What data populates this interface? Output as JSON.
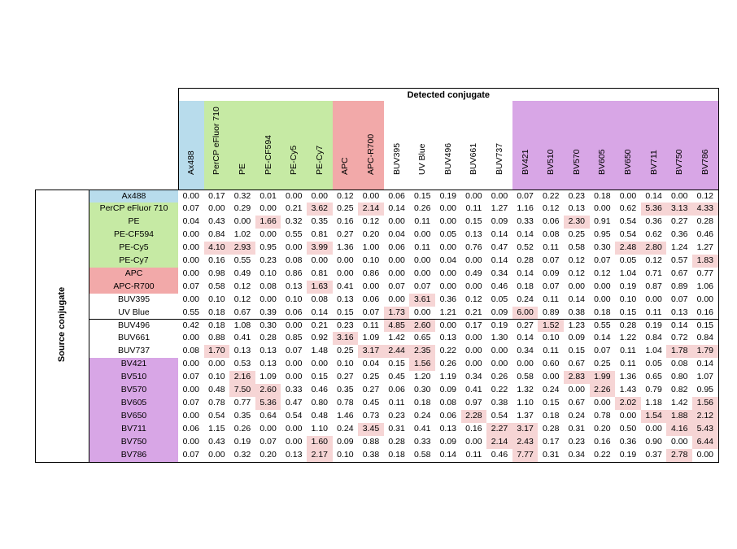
{
  "chart_data": {
    "type": "table",
    "column_header_title": "Detected conjugate",
    "row_header_title": "Source conjugate",
    "columns": [
      "Ax488",
      "PerCP eFluor 710",
      "PE",
      "PE-CF594",
      "PE-Cy5",
      "PE-Cy7",
      "APC",
      "APC-R700",
      "BUV395",
      "UV Blue",
      "BUV496",
      "BUV661",
      "BUV737",
      "BV421",
      "BV510",
      "BV570",
      "BV605",
      "BV650",
      "BV711",
      "BV750",
      "BV786"
    ],
    "rows": [
      "Ax488",
      "PerCP eFluor 710",
      "PE",
      "PE-CF594",
      "PE-Cy5",
      "PE-Cy7",
      "APC",
      "APC-R700",
      "BUV395",
      "UV Blue",
      "BUV496",
      "BUV661",
      "BUV737",
      "BV421",
      "BV510",
      "BV570",
      "BV605",
      "BV650",
      "BV711",
      "BV750",
      "BV786"
    ],
    "group_colors": {
      "blue": "#b8dcec",
      "green": "#c6eaa4",
      "red": "#f2a9a9",
      "white": "#ffffff",
      "purple": "#d8a6e6"
    },
    "column_groups": [
      "blue",
      "green",
      "green",
      "green",
      "green",
      "green",
      "red",
      "red",
      "white",
      "white",
      "white",
      "white",
      "white",
      "purple",
      "purple",
      "purple",
      "purple",
      "purple",
      "purple",
      "purple",
      "purple"
    ],
    "highlight_threshold": 1.5,
    "highlight_color": "#f6d5d5",
    "values": [
      [
        "0.00",
        "0.17",
        "0.32",
        "0.01",
        "0.00",
        "0.00",
        "0.12",
        "0.00",
        "0.06",
        "0.15",
        "0.19",
        "0.00",
        "0.00",
        "0.07",
        "0.22",
        "0.23",
        "0.18",
        "0.00",
        "0.14",
        "0.00",
        "0.12"
      ],
      [
        "0.07",
        "0.00",
        "0.29",
        "0.00",
        "0.21",
        "3.62",
        "0.25",
        "2.14",
        "0.14",
        "0.26",
        "0.00",
        "0.11",
        "1.27",
        "1.16",
        "0.12",
        "0.13",
        "0.00",
        "0.62",
        "5.36",
        "3.13",
        "4.33"
      ],
      [
        "0.04",
        "0.43",
        "0.00",
        "1.66",
        "0.32",
        "0.35",
        "0.16",
        "0.12",
        "0.00",
        "0.11",
        "0.00",
        "0.15",
        "0.09",
        "0.33",
        "0.06",
        "2.30",
        "0.91",
        "0.54",
        "0.36",
        "0.27",
        "0.28"
      ],
      [
        "0.00",
        "0.84",
        "1.02",
        "0.00",
        "0.55",
        "0.81",
        "0.27",
        "0.20",
        "0.04",
        "0.00",
        "0.05",
        "0.13",
        "0.14",
        "0.14",
        "0.08",
        "0.25",
        "0.95",
        "0.54",
        "0.62",
        "0.36",
        "0.46"
      ],
      [
        "0.00",
        "4.10",
        "2.93",
        "0.95",
        "0.00",
        "3.99",
        "1.36",
        "1.00",
        "0.06",
        "0.11",
        "0.00",
        "0.76",
        "0.47",
        "0.52",
        "0.11",
        "0.58",
        "0.30",
        "2.48",
        "2.80",
        "1.24",
        "1.27"
      ],
      [
        "0.00",
        "0.16",
        "0.55",
        "0.23",
        "0.08",
        "0.00",
        "0.00",
        "0.10",
        "0.00",
        "0.00",
        "0.04",
        "0.00",
        "0.14",
        "0.28",
        "0.07",
        "0.12",
        "0.07",
        "0.05",
        "0.12",
        "0.57",
        "1.83"
      ],
      [
        "0.00",
        "0.98",
        "0.49",
        "0.10",
        "0.86",
        "0.81",
        "0.00",
        "0.86",
        "0.00",
        "0.00",
        "0.00",
        "0.49",
        "0.34",
        "0.14",
        "0.09",
        "0.12",
        "0.12",
        "1.04",
        "0.71",
        "0.67",
        "0.77"
      ],
      [
        "0.07",
        "0.58",
        "0.12",
        "0.08",
        "0.13",
        "1.63",
        "0.41",
        "0.00",
        "0.07",
        "0.07",
        "0.00",
        "0.00",
        "0.46",
        "0.18",
        "0.07",
        "0.00",
        "0.00",
        "0.19",
        "0.87",
        "0.89",
        "1.06"
      ],
      [
        "0.00",
        "0.10",
        "0.12",
        "0.00",
        "0.10",
        "0.08",
        "0.13",
        "0.06",
        "0.00",
        "3.61",
        "0.36",
        "0.12",
        "0.05",
        "0.24",
        "0.11",
        "0.14",
        "0.00",
        "0.10",
        "0.00",
        "0.07",
        "0.00"
      ],
      [
        "0.55",
        "0.18",
        "0.67",
        "0.39",
        "0.06",
        "0.14",
        "0.15",
        "0.07",
        "1.73",
        "0.00",
        "1.21",
        "0.21",
        "0.09",
        "6.00",
        "0.89",
        "0.38",
        "0.18",
        "0.15",
        "0.11",
        "0.13",
        "0.16"
      ],
      [
        "0.42",
        "0.18",
        "1.08",
        "0.30",
        "0.00",
        "0.21",
        "0.23",
        "0.11",
        "4.85",
        "2.60",
        "0.00",
        "0.17",
        "0.19",
        "0.27",
        "1.52",
        "1.23",
        "0.55",
        "0.28",
        "0.19",
        "0.14",
        "0.15"
      ],
      [
        "0.00",
        "0.88",
        "0.41",
        "0.28",
        "0.85",
        "0.92",
        "3.16",
        "1.09",
        "1.42",
        "0.65",
        "0.13",
        "0.00",
        "1.30",
        "0.14",
        "0.10",
        "0.09",
        "0.14",
        "1.22",
        "0.84",
        "0.72",
        "0.84"
      ],
      [
        "0.08",
        "1.70",
        "0.13",
        "0.13",
        "0.07",
        "1.48",
        "0.25",
        "3.17",
        "2.44",
        "2.35",
        "0.22",
        "0.00",
        "0.00",
        "0.34",
        "0.11",
        "0.15",
        "0.07",
        "0.11",
        "1.04",
        "1.78",
        "1.79"
      ],
      [
        "0.00",
        "0.00",
        "0.53",
        "0.13",
        "0.00",
        "0.00",
        "0.10",
        "0.04",
        "0.15",
        "1.56",
        "0.26",
        "0.00",
        "0.00",
        "0.00",
        "0.60",
        "0.67",
        "0.25",
        "0.11",
        "0.05",
        "0.08",
        "0.14"
      ],
      [
        "0.07",
        "0.10",
        "2.16",
        "1.09",
        "0.00",
        "0.15",
        "0.27",
        "0.25",
        "0.45",
        "1.20",
        "1.19",
        "0.34",
        "0.26",
        "0.58",
        "0.00",
        "2.83",
        "1.99",
        "1.36",
        "0.65",
        "0.80",
        "1.07"
      ],
      [
        "0.00",
        "0.48",
        "7.50",
        "2.60",
        "0.33",
        "0.46",
        "0.35",
        "0.27",
        "0.06",
        "0.30",
        "0.09",
        "0.41",
        "0.22",
        "1.32",
        "0.24",
        "0.00",
        "2.26",
        "1.43",
        "0.79",
        "0.82",
        "0.95"
      ],
      [
        "0.07",
        "0.78",
        "0.77",
        "5.36",
        "0.47",
        "0.80",
        "0.78",
        "0.45",
        "0.11",
        "0.18",
        "0.08",
        "0.97",
        "0.38",
        "1.10",
        "0.15",
        "0.67",
        "0.00",
        "2.02",
        "1.18",
        "1.42",
        "1.56"
      ],
      [
        "0.00",
        "0.54",
        "0.35",
        "0.64",
        "0.54",
        "0.48",
        "1.46",
        "0.73",
        "0.23",
        "0.24",
        "0.06",
        "2.28",
        "0.54",
        "1.37",
        "0.18",
        "0.24",
        "0.78",
        "0.00",
        "1.54",
        "1.88",
        "2.12"
      ],
      [
        "0.06",
        "1.15",
        "0.26",
        "0.00",
        "0.00",
        "1.10",
        "0.24",
        "3.45",
        "0.31",
        "0.41",
        "0.13",
        "0.16",
        "2.27",
        "3.17",
        "0.28",
        "0.31",
        "0.20",
        "0.50",
        "0.00",
        "4.16",
        "5.43"
      ],
      [
        "0.00",
        "0.43",
        "0.19",
        "0.07",
        "0.00",
        "1.60",
        "0.09",
        "0.88",
        "0.28",
        "0.33",
        "0.09",
        "0.00",
        "2.14",
        "2.43",
        "0.17",
        "0.23",
        "0.16",
        "0.36",
        "0.90",
        "0.00",
        "6.44"
      ],
      [
        "0.07",
        "0.00",
        "0.32",
        "0.20",
        "0.13",
        "2.17",
        "0.10",
        "0.38",
        "0.18",
        "0.58",
        "0.14",
        "0.11",
        "0.46",
        "7.77",
        "0.31",
        "0.34",
        "0.22",
        "0.19",
        "0.37",
        "2.78",
        "0.00"
      ]
    ]
  }
}
